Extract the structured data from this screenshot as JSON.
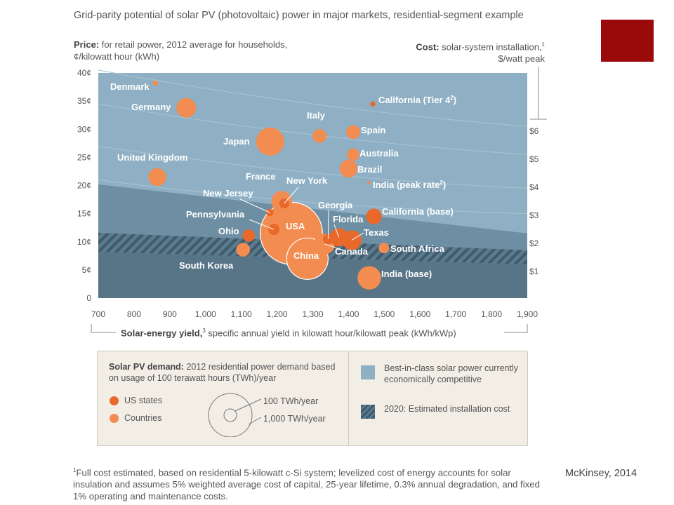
{
  "title": "Grid-parity potential of solar PV (photovoltaic) power in major markets, residential-segment example",
  "price_axis": {
    "label_bold": "Price:",
    "label_rest": "for retail power, 2012 average for households, ¢/kilowatt hour (kWh)"
  },
  "cost_axis": {
    "label_bold": "Cost:",
    "label_rest": "solar-system installation,",
    "sup": "1",
    "unit": "$/watt peak"
  },
  "yield_axis": {
    "label_bold": "Solar-energy yield,",
    "sup": "3",
    "label_rest": "specific annual yield in kilowatt hour/kilowatt peak (kWh/kWp)"
  },
  "legend": {
    "demand_bold": "Solar PV demand:",
    "demand_rest": "2012 residential power demand based on usage of 100 terawatt hours (TWh)/year",
    "us_states": "US states",
    "countries": "Countries",
    "small_circle": "100 TWh/year",
    "large_circle": "1,000 TWh/year",
    "best_in_class": "Best-in-class solar power currently economically competitive",
    "estimated_2020": "2020: Estimated installation cost"
  },
  "footnote": "Full cost estimated, based on residential 5-kilowatt c-Si system; levelized cost of energy accounts for solar insulation and assumes 5% weighted average cost of capital, 25-year lifetime, 0.3% annual degradation, and fixed 1% operating and maintenance costs.",
  "footnote_mark": "1",
  "source": "McKinsey, 2014",
  "colors": {
    "state": "#e8692a",
    "country": "#f28c50",
    "bg_light": "#8fb0c4",
    "bg_mid": "#6e8fa3",
    "bg_dark": "#587487",
    "accent": "#9b0a0a"
  },
  "chart_data": {
    "type": "scatter",
    "title": "Grid-parity potential of solar PV (photovoltaic) power in major markets, residential-segment example",
    "xlabel": "Solar-energy yield, specific annual yield in kilowatt hour/kilowatt peak (kWh/kWp)",
    "ylabel": "Price: for retail power, 2012 average for households, ¢/kilowatt hour (kWh)",
    "y2label": "Cost: solar-system installation, $/watt peak",
    "xlim": [
      700,
      1900
    ],
    "ylim": [
      0,
      40
    ],
    "x_ticks": [
      "700",
      "800",
      "900",
      "1,000",
      "1,100",
      "1,200",
      "1,300",
      "1,400",
      "1,500",
      "1,600",
      "1,700",
      "1,800",
      "1,900"
    ],
    "y_ticks": [
      "0",
      "5¢",
      "10¢",
      "15¢",
      "20¢",
      "25¢",
      "30¢",
      "35¢",
      "40¢"
    ],
    "y2_ticks": [
      "$1",
      "$2",
      "$3",
      "$4",
      "$5",
      "$6"
    ],
    "y2_values": [
      1,
      2,
      3,
      4,
      5,
      6
    ],
    "regions": [
      {
        "name": "Best-in-class solar power currently economically competitive",
        "boundary_y": [
          [
            700,
            20.2
          ],
          [
            1900,
            11.5
          ]
        ]
      },
      {
        "name": "2020: Estimated installation cost",
        "upper_y": [
          [
            700,
            11.6
          ],
          [
            1900,
            8.5
          ]
        ],
        "lower_y": [
          [
            700,
            8.2
          ],
          [
            1900,
            6.0
          ]
        ]
      }
    ],
    "points": [
      {
        "name": "Denmark",
        "x": 860,
        "y": 38.2,
        "demand": 10,
        "kind": "country"
      },
      {
        "name": "Germany",
        "x": 946,
        "y": 33.8,
        "demand": 140,
        "kind": "country"
      },
      {
        "name": "Italy",
        "x": 1319,
        "y": 28.8,
        "demand": 70,
        "kind": "country"
      },
      {
        "name": "Japan",
        "x": 1181,
        "y": 27.8,
        "demand": 285,
        "kind": "country"
      },
      {
        "name": "United Kingdom",
        "x": 865,
        "y": 21.5,
        "demand": 115,
        "kind": "country"
      },
      {
        "name": "Spain",
        "x": 1413,
        "y": 29.5,
        "demand": 70,
        "kind": "country"
      },
      {
        "name": "Australia",
        "x": 1413,
        "y": 25.5,
        "demand": 55,
        "kind": "country"
      },
      {
        "name": "Brazil",
        "x": 1400,
        "y": 23.0,
        "demand": 115,
        "kind": "country"
      },
      {
        "name": "India (peak rate)",
        "x": 1457,
        "y": 20.5,
        "demand": 1,
        "kind": "country",
        "label_sup": "2"
      },
      {
        "name": "California (Tier 4)",
        "x": 1468,
        "y": 34.5,
        "demand": 10,
        "kind": "state",
        "label_sup": "2"
      },
      {
        "name": "France",
        "x": 1213,
        "y": 17.2,
        "demand": 155,
        "kind": "country"
      },
      {
        "name": "New York",
        "x": 1220,
        "y": 16.8,
        "demand": 35,
        "kind": "state"
      },
      {
        "name": "New Jersey",
        "x": 1180,
        "y": 15.2,
        "demand": 20,
        "kind": "state"
      },
      {
        "name": "Pennsylvania",
        "x": 1191,
        "y": 12.2,
        "demand": 45,
        "kind": "state"
      },
      {
        "name": "Ohio",
        "x": 1121,
        "y": 11.1,
        "demand": 55,
        "kind": "state"
      },
      {
        "name": "USA",
        "x": 1240,
        "y": 11.5,
        "demand": 1400,
        "kind": "country"
      },
      {
        "name": "China",
        "x": 1285,
        "y": 7.0,
        "demand": 620,
        "kind": "country"
      },
      {
        "name": "Georgia",
        "x": 1343,
        "y": 10.5,
        "demand": 40,
        "kind": "state"
      },
      {
        "name": "Florida",
        "x": 1373,
        "y": 10.8,
        "demand": 120,
        "kind": "state"
      },
      {
        "name": "Texas",
        "x": 1409,
        "y": 10.3,
        "demand": 140,
        "kind": "state"
      },
      {
        "name": "Canada",
        "x": 1333,
        "y": 9.6,
        "demand": 160,
        "kind": "country"
      },
      {
        "name": "California (base)",
        "x": 1471,
        "y": 14.5,
        "demand": 90,
        "kind": "state"
      },
      {
        "name": "South Africa",
        "x": 1499,
        "y": 8.9,
        "demand": 40,
        "kind": "country"
      },
      {
        "name": "South Korea",
        "x": 1105,
        "y": 8.6,
        "demand": 70,
        "kind": "country"
      },
      {
        "name": "India (base)",
        "x": 1458,
        "y": 3.6,
        "demand": 200,
        "kind": "country"
      }
    ]
  }
}
